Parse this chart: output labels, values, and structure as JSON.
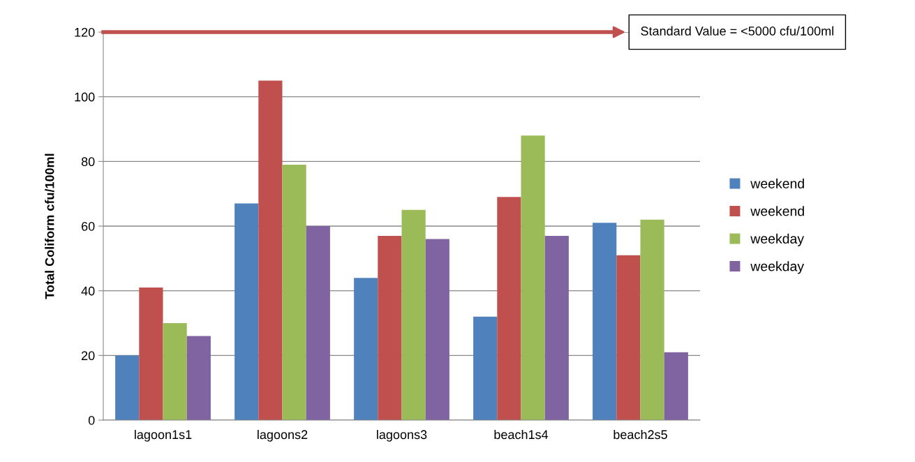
{
  "chart_data": {
    "type": "bar",
    "ylabel": "Total Coliform cfu/100ml",
    "categories": [
      "lagoon1s1",
      "lagoons2",
      "lagoons3",
      "beach1s4",
      "beach2s5"
    ],
    "series": [
      {
        "name": "weekend",
        "color": "#4f81bd",
        "values": [
          20,
          67,
          44,
          32,
          61
        ]
      },
      {
        "name": "weekend",
        "color": "#c0504d",
        "values": [
          41,
          105,
          57,
          69,
          51
        ]
      },
      {
        "name": "weekday",
        "color": "#9bbb59",
        "values": [
          30,
          79,
          65,
          88,
          62
        ]
      },
      {
        "name": "weekday",
        "color": "#8064a2",
        "values": [
          26,
          60,
          56,
          57,
          21
        ]
      }
    ],
    "ylim": [
      0,
      120
    ],
    "yticks": [
      0,
      20,
      40,
      60,
      80,
      100,
      120
    ],
    "grid": "y",
    "legend": "right",
    "ref_lines": [
      {
        "axis": "y",
        "value": 120,
        "label": "Standard Value = <5000 cfu/100ml",
        "color": "#c0504d"
      }
    ]
  }
}
